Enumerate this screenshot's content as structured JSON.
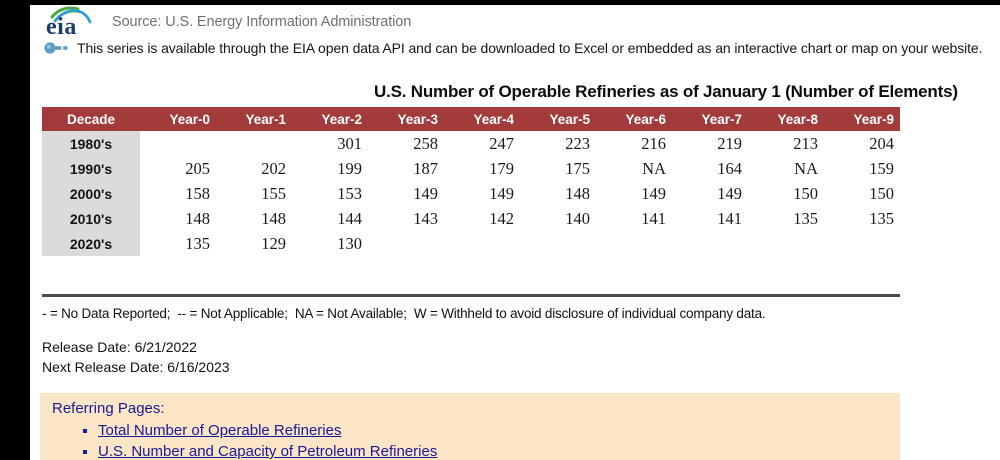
{
  "header": {
    "logo_text": "eia",
    "source_label": "Source: U.S. Energy Information Administration",
    "api_note": "This series is available through the EIA open data API and can be downloaded to Excel or embedded as an interactive chart or map on your website."
  },
  "icons": {
    "api_icon": "key-icon",
    "logo_icon": "eia-swoosh-icon"
  },
  "table": {
    "title": "U.S. Number of Operable Refineries as of January 1 (Number of Elements)",
    "columns": [
      "Decade",
      "Year-0",
      "Year-1",
      "Year-2",
      "Year-3",
      "Year-4",
      "Year-5",
      "Year-6",
      "Year-7",
      "Year-8",
      "Year-9"
    ],
    "rows": [
      {
        "decade": "1980's",
        "values": [
          "",
          "",
          "301",
          "258",
          "247",
          "223",
          "216",
          "219",
          "213",
          "204"
        ]
      },
      {
        "decade": "1990's",
        "values": [
          "205",
          "202",
          "199",
          "187",
          "179",
          "175",
          "NA",
          "164",
          "NA",
          "159"
        ]
      },
      {
        "decade": "2000's",
        "values": [
          "158",
          "155",
          "153",
          "149",
          "149",
          "148",
          "149",
          "149",
          "150",
          "150"
        ]
      },
      {
        "decade": "2010's",
        "values": [
          "148",
          "148",
          "144",
          "143",
          "142",
          "140",
          "141",
          "141",
          "135",
          "135"
        ]
      },
      {
        "decade": "2020's",
        "values": [
          "135",
          "129",
          "130",
          "",
          "",
          "",
          "",
          "",
          "",
          ""
        ]
      }
    ]
  },
  "footnote": "- = No Data Reported;  -- = Not Applicable;  NA = Not Available;  W = Withheld to avoid disclosure of individual company data.",
  "release": {
    "line1": "Release Date: 6/21/2022",
    "line2": "Next Release Date: 6/16/2023"
  },
  "referring": {
    "heading": "Referring Pages:",
    "links": [
      "Total Number of Operable Refineries",
      "U.S. Number and Capacity of Petroleum Refineries"
    ]
  },
  "colors": {
    "table_header_bg": "#a33b3b",
    "decade_column_bg": "#dbdbdb",
    "referring_box_bg": "#fae5c6",
    "link_color": "#1a1a96",
    "frame_bar": "#000000"
  }
}
